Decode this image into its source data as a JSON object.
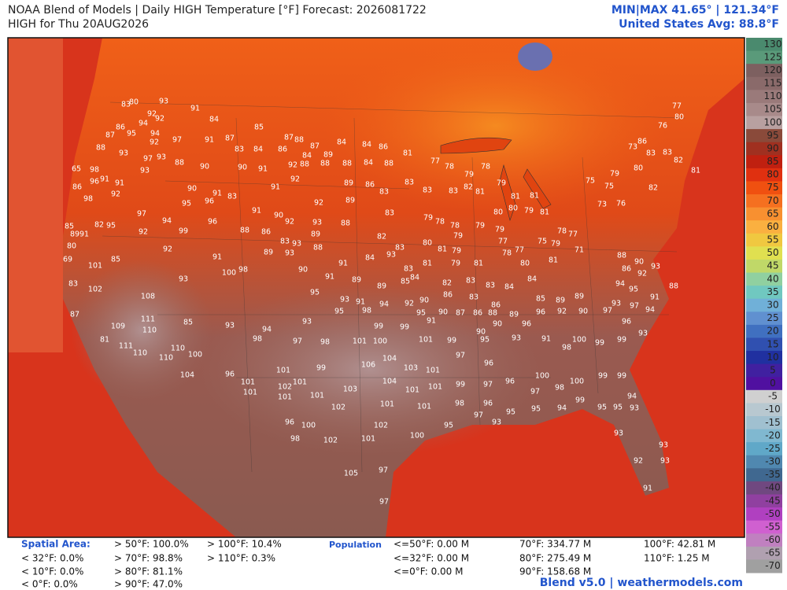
{
  "header": {
    "title": "NOAA Blend of Models | Daily HIGH Temperature [°F] Forecast: 2026081722",
    "subtitle": "HIGH for Thu 20AUG2026",
    "minmax": "MIN|MAX 41.65°  |  121.34°F",
    "average": "United States Avg: 88.8°F"
  },
  "colorbar": {
    "ticks": [
      130,
      125,
      120,
      115,
      110,
      105,
      100,
      95,
      90,
      85,
      80,
      75,
      70,
      65,
      60,
      55,
      50,
      45,
      40,
      35,
      30,
      25,
      20,
      15,
      10,
      5,
      0,
      -5,
      -10,
      -15,
      -20,
      -25,
      -30,
      -35,
      -40,
      -45,
      -50,
      -55,
      -60,
      -65,
      -70
    ],
    "colors": [
      "#4a8a6e",
      "#5a9a7a",
      "#7d6060",
      "#8a6a6a",
      "#9a7a7a",
      "#a88a8a",
      "#b8a0a0",
      "#8a4a3a",
      "#a03020",
      "#c02010",
      "#e03010",
      "#f05010",
      "#f57020",
      "#f89030",
      "#fab040",
      "#f0c840",
      "#e0e050",
      "#c0d868",
      "#90d0a0",
      "#70c8c0",
      "#70b0d8",
      "#6090d0",
      "#4070c0",
      "#3050b0",
      "#2030a0",
      "#4020a0",
      "#5010a0",
      "#d0d0d0",
      "#b8c8d0",
      "#a0c0d0",
      "#80b8d0",
      "#60a8c8",
      "#5088b0",
      "#406890",
      "#704880",
      "#9040a0",
      "#b040c0",
      "#d060d0",
      "#c080c0",
      "#b0a0b0",
      "#a0a0a0"
    ]
  },
  "map_labels": [
    83,
    80,
    93,
    92,
    92,
    94,
    86,
    87,
    95,
    94,
    97,
    92,
    91,
    84,
    91,
    88,
    93,
    97,
    93,
    88,
    93,
    90,
    98,
    65,
    91,
    96,
    86,
    91,
    92,
    90,
    91,
    83,
    95,
    96,
    98,
    97,
    94,
    99,
    92,
    96,
    92,
    82,
    95,
    85,
    89,
    91,
    80,
    85,
    69,
    101,
    91,
    100,
    98,
    93,
    102,
    83,
    108,
    87,
    109,
    111,
    110,
    81,
    111,
    110,
    110,
    110,
    100,
    85,
    93,
    98,
    94,
    104,
    96,
    101,
    101,
    101,
    102,
    101,
    101,
    99,
    101,
    85,
    87,
    88,
    87,
    84,
    84,
    86,
    81,
    87,
    83,
    84,
    86,
    84,
    89,
    88,
    88,
    88,
    84,
    88,
    90,
    91,
    92,
    92,
    91,
    89,
    86,
    83,
    83,
    83,
    92,
    89,
    83,
    90,
    91,
    92,
    93,
    88,
    88,
    86,
    83,
    93,
    89,
    88,
    82,
    83,
    89,
    93,
    91,
    84,
    93,
    81,
    83,
    79,
    78,
    78,
    79,
    80,
    81,
    79,
    79,
    81,
    79,
    79,
    77,
    78,
    79,
    83,
    82,
    81,
    78,
    79,
    81,
    81,
    80,
    80,
    79,
    81,
    77,
    78,
    77,
    80,
    75,
    79,
    78,
    77,
    71,
    81,
    75,
    75,
    73,
    76,
    79,
    80,
    82,
    83,
    83,
    82,
    81,
    73,
    86,
    76,
    77,
    80,
    88,
    90,
    93,
    92,
    86,
    94,
    95,
    91,
    88,
    97,
    94,
    93,
    97,
    90,
    92,
    96,
    85,
    89,
    89,
    90,
    91,
    89,
    89,
    85,
    84,
    82,
    83,
    83,
    84,
    84,
    86,
    83,
    86,
    93,
    91,
    94,
    92,
    90,
    90,
    87,
    86,
    88,
    89,
    95,
    98,
    95,
    91,
    90,
    90,
    96,
    95,
    93,
    97,
    98,
    101,
    100,
    99,
    99,
    101,
    99,
    95,
    93,
    91,
    98,
    100,
    99,
    99,
    93,
    96,
    106,
    104,
    103,
    101,
    97,
    96,
    100,
    98,
    100,
    99,
    99,
    103,
    104,
    101,
    101,
    99,
    97,
    96,
    97,
    102,
    101,
    101,
    98,
    96,
    97,
    93,
    95,
    95,
    94,
    99,
    95,
    95,
    94,
    93,
    93,
    93,
    92,
    93,
    91,
    96,
    100,
    102,
    95,
    98,
    102,
    101,
    100,
    105,
    97,
    97
  ],
  "stats": {
    "area_label": "Spatial Area:",
    "area": [
      "< 32°F: 0.0%",
      "< 10°F: 0.0%",
      "< 0°F: 0.0%",
      "> 50°F: 100.0%",
      "> 70°F: 98.8%",
      "> 80°F: 81.1%",
      "> 90°F: 47.0%",
      "> 100°F: 10.4%",
      "> 110°F: 0.3%"
    ],
    "population_label": "Population",
    "population": [
      "<=50°F: 0.00 M",
      "<=32°F: 0.00 M",
      "<=0°F: 0.00 M",
      "70°F: 334.77 M",
      "80°F: 275.49 M",
      "90°F: 158.68 M",
      "100°F: 42.81 M",
      "110°F: 1.25 M"
    ]
  },
  "footer": "Blend v5.0 | weathermodels.com"
}
